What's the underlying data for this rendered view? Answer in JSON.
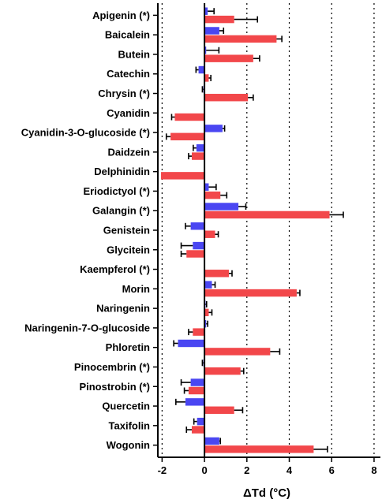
{
  "chart_data": {
    "type": "bar",
    "orientation": "horizontal",
    "xlabel": "ΔTd (°C)",
    "xlim": [
      -2.2,
      8.3
    ],
    "xticks": [
      -2,
      0,
      2,
      4,
      6,
      8
    ],
    "xtick_labels": [
      "-2",
      "0",
      "2",
      "4",
      "6",
      "8"
    ],
    "grid": "vertical dotted lines at x = -2, 2, 4, 6, 8",
    "colors": {
      "blue": "#4a46f2",
      "red": "#f2474a",
      "error": "#000000"
    },
    "categories": [
      "Apigenin (*)",
      "Baicalein",
      "Butein",
      "Catechin",
      "Chrysin (*)",
      "Cyanidin",
      "Cyanidin-3-O-glucoside (*)",
      "Daidzein",
      "Delphinidin",
      "Eriodictyol (*)",
      "Galangin (*)",
      "Genistein",
      "Glycitein",
      "Kaempferol (*)",
      "Morin",
      "Naringenin",
      "Naringenin-7-O-glucoside",
      "Phloretin",
      "Pinocembrin (*)",
      "Pinostrobin (*)",
      "Quercetin",
      "Taxifolin",
      "Wogonin"
    ],
    "series": [
      {
        "color": "blue",
        "values": [
          0.15,
          0.7,
          0.08,
          -0.28,
          -0.05,
          0.0,
          0.85,
          -0.38,
          0.0,
          0.2,
          1.6,
          -0.65,
          -0.55,
          0.0,
          0.35,
          0.05,
          0.08,
          -1.25,
          -0.05,
          -0.65,
          -0.9,
          -0.35,
          0.7
        ],
        "errors": [
          0.3,
          0.2,
          0.6,
          0.12,
          0.05,
          0.0,
          0.1,
          0.15,
          0.0,
          0.35,
          0.35,
          0.25,
          0.55,
          0.0,
          0.15,
          0.05,
          0.07,
          0.2,
          0.05,
          0.45,
          0.45,
          0.15,
          0.05
        ]
      },
      {
        "color": "red",
        "values": [
          1.4,
          3.4,
          2.3,
          0.2,
          2.05,
          -1.4,
          -1.6,
          -0.6,
          -2.05,
          0.75,
          5.9,
          0.5,
          -0.85,
          1.15,
          4.35,
          0.2,
          -0.55,
          3.1,
          1.7,
          -0.75,
          1.4,
          -0.6,
          5.15
        ],
        "errors": [
          1.1,
          0.25,
          0.3,
          0.1,
          0.25,
          0.15,
          0.2,
          0.15,
          0.0,
          0.3,
          0.65,
          0.15,
          0.25,
          0.15,
          0.15,
          0.15,
          0.2,
          0.45,
          0.15,
          0.2,
          0.4,
          0.25,
          0.65
        ]
      }
    ]
  }
}
